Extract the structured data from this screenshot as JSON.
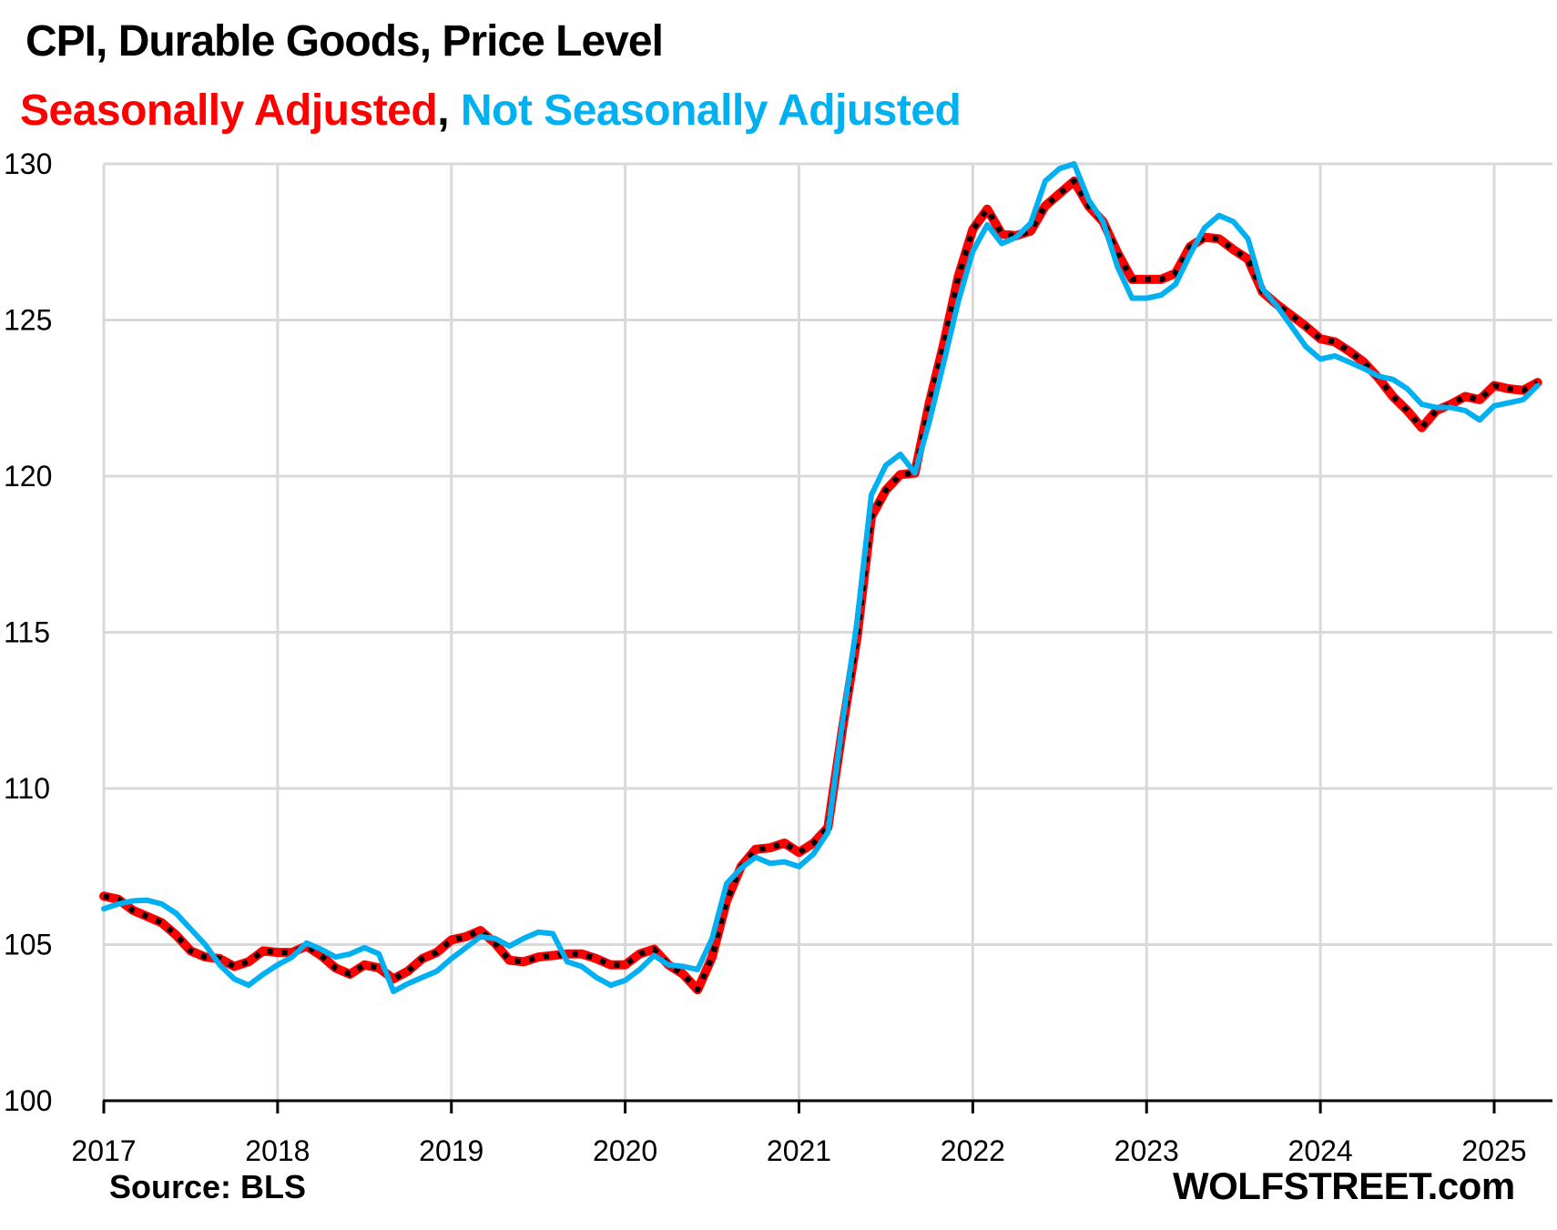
{
  "chart_data": {
    "type": "line",
    "title": "CPI, Durable Goods, Price Level",
    "subtitle_parts": [
      {
        "text": "Seasonally Adjusted",
        "series": "sa"
      },
      {
        "text": ", ",
        "series": "none"
      },
      {
        "text": "Not Seasonally Adjusted",
        "series": "nsa"
      }
    ],
    "xlabel": "",
    "ylabel": "",
    "ylim": [
      100,
      130
    ],
    "yticks": [
      100,
      105,
      110,
      115,
      120,
      125,
      130
    ],
    "xlim": [
      "2017-01",
      "2025-05"
    ],
    "xticks": [
      "2017",
      "2018",
      "2019",
      "2020",
      "2021",
      "2022",
      "2023",
      "2024",
      "2025"
    ],
    "grid": true,
    "x_start": "2017-01",
    "x_frequency": "monthly",
    "series": [
      {
        "name": "Seasonally Adjusted",
        "key": "sa",
        "color": "#ff0000",
        "overlay_color": "#000000",
        "style": "thick red with black dotted overlay",
        "values": [
          106.55,
          106.45,
          106.1,
          105.9,
          105.7,
          105.3,
          104.8,
          104.6,
          104.55,
          104.3,
          104.45,
          104.8,
          104.75,
          104.75,
          104.95,
          104.65,
          104.25,
          104.05,
          104.35,
          104.25,
          103.9,
          104.15,
          104.55,
          104.75,
          105.15,
          105.25,
          105.45,
          105.05,
          104.5,
          104.45,
          104.6,
          104.65,
          104.7,
          104.7,
          104.55,
          104.35,
          104.35,
          104.7,
          104.85,
          104.35,
          104.05,
          103.55,
          104.6,
          106.4,
          107.5,
          108.05,
          108.1,
          108.25,
          107.95,
          108.25,
          108.75,
          111.9,
          114.8,
          118.7,
          119.55,
          120.05,
          120.1,
          122.35,
          124.25,
          126.4,
          127.9,
          128.55,
          127.75,
          127.7,
          127.85,
          128.65,
          129.05,
          129.45,
          128.65,
          128.15,
          127.15,
          126.3,
          126.3,
          126.3,
          126.5,
          127.35,
          127.65,
          127.6,
          127.25,
          126.95,
          125.9,
          125.5,
          125.15,
          124.8,
          124.4,
          124.3,
          124.0,
          123.65,
          123.15,
          122.55,
          122.1,
          121.55,
          122.1,
          122.3,
          122.55,
          122.45,
          122.9,
          122.8,
          122.75,
          123.0
        ]
      },
      {
        "name": "Not Seasonally Adjusted",
        "key": "nsa",
        "color": "#00b0f0",
        "style": "solid blue",
        "values": [
          106.15,
          106.3,
          106.4,
          106.42,
          106.3,
          106.0,
          105.5,
          105.0,
          104.35,
          103.9,
          103.7,
          104.05,
          104.35,
          104.6,
          105.05,
          104.85,
          104.6,
          104.7,
          104.9,
          104.7,
          103.5,
          103.75,
          103.95,
          104.15,
          104.55,
          104.9,
          105.25,
          105.2,
          104.95,
          105.2,
          105.4,
          105.35,
          104.45,
          104.3,
          103.95,
          103.7,
          103.85,
          104.2,
          104.65,
          104.35,
          104.3,
          104.2,
          105.2,
          106.95,
          107.45,
          107.8,
          107.6,
          107.65,
          107.5,
          107.9,
          108.6,
          112.1,
          115.3,
          119.4,
          120.35,
          120.7,
          120.1,
          121.75,
          123.65,
          125.6,
          127.2,
          128.05,
          127.45,
          127.65,
          128.1,
          129.45,
          129.85,
          130.0,
          128.85,
          128.15,
          126.7,
          125.7,
          125.7,
          125.8,
          126.15,
          127.1,
          127.95,
          128.35,
          128.15,
          127.6,
          126.0,
          125.45,
          124.8,
          124.15,
          123.75,
          123.85,
          123.65,
          123.45,
          123.2,
          123.1,
          122.8,
          122.3,
          122.2,
          122.2,
          122.1,
          121.8,
          122.25,
          122.35,
          122.45,
          122.9
        ]
      }
    ],
    "legend": "subtitle",
    "source": "Source: BLS",
    "brand": "WOLFSTREET.com"
  }
}
